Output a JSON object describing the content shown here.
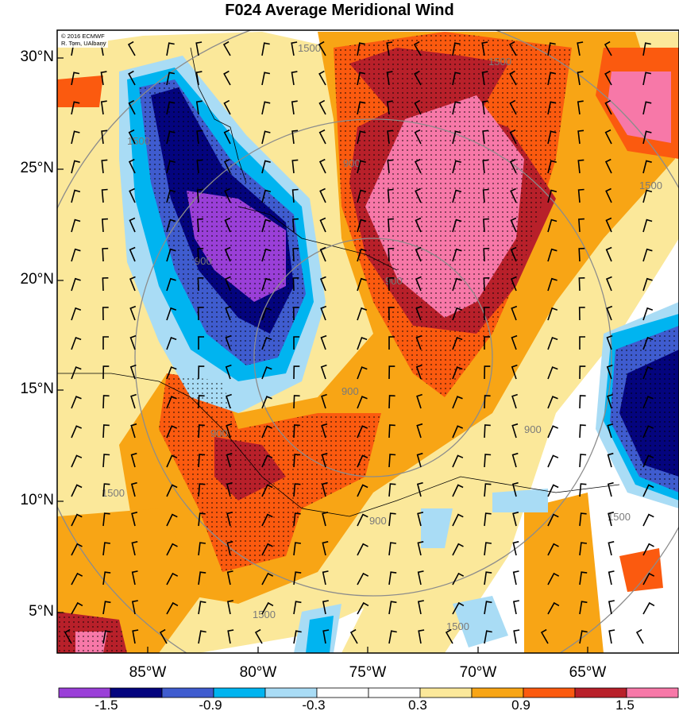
{
  "title": "F024 Average Meridional Wind",
  "credit": {
    "line1": "© 2016 ECMWF",
    "line2": "R. Torn, UAlbany"
  },
  "map": {
    "lat_labels": [
      "30°N",
      "25°N",
      "20°N",
      "15°N",
      "10°N",
      "5°N"
    ],
    "lon_labels": [
      "85°W",
      "80°W",
      "75°W",
      "70°W",
      "65°W"
    ],
    "range_ring_labels": [
      "900",
      "1500"
    ]
  },
  "colorbar": {
    "labels": [
      "-1.5",
      "-0.9",
      "-0.3",
      "0.3",
      "0.9",
      "1.5"
    ],
    "colors": [
      "#9a3fd8",
      "#04047e",
      "#3f5ccf",
      "#00b4f0",
      "#a9dcf5",
      "#ffffff",
      "#ffffff",
      "#fbe89a",
      "#f8a515",
      "#fb5a0f",
      "#b8202a",
      "#f778a8"
    ]
  },
  "chart_data": {
    "type": "heatmap",
    "title": "F024 Average Meridional Wind",
    "xlabel": "",
    "ylabel": "",
    "x_ticks": [
      "85°W",
      "80°W",
      "75°W",
      "70°W",
      "65°W"
    ],
    "y_ticks": [
      "30°N",
      "25°N",
      "20°N",
      "15°N",
      "10°N",
      "5°N"
    ],
    "color_scale_levels": [
      -1.5,
      -0.9,
      -0.3,
      0.3,
      0.9,
      1.5
    ],
    "grid": false
  }
}
